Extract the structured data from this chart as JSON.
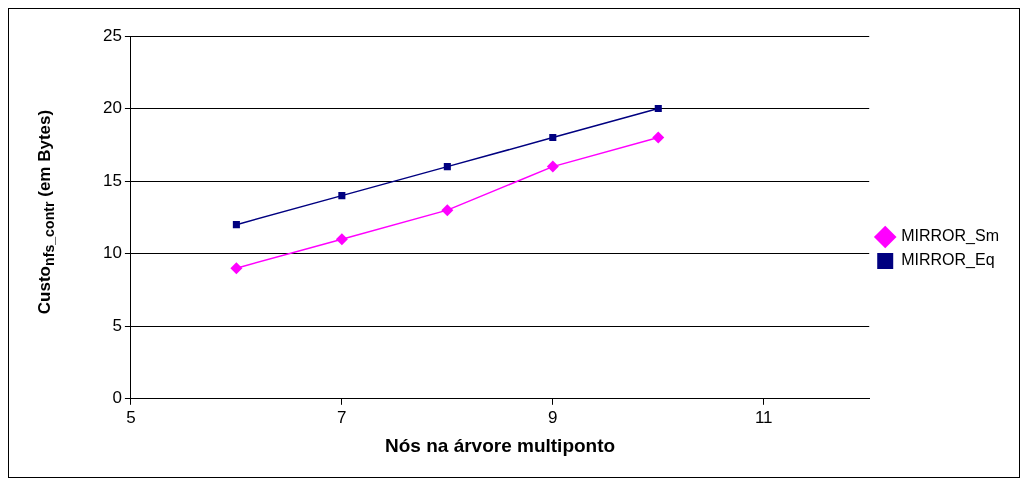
{
  "chart_data": {
    "type": "line",
    "xlabel": "Nós na árvore multiponto",
    "ylabel": "Custo$_{nfs_contr}$ (em Bytes)",
    "xlim": [
      5,
      12
    ],
    "xticks": [
      5,
      7,
      9,
      11
    ],
    "ylim": [
      0,
      25
    ],
    "yticks": [
      0,
      5,
      10,
      15,
      20,
      25
    ],
    "grid": "y",
    "legend": "right",
    "series": [
      {
        "name": "MIRROR_Sm",
        "color": "#ff00ff",
        "marker": "diamond",
        "x": [
          6,
          7,
          8,
          9,
          10
        ],
        "values": [
          9,
          11,
          13,
          16,
          18
        ]
      },
      {
        "name": "MIRROR_Eq",
        "color": "#000080",
        "marker": "square",
        "x": [
          6,
          7,
          8,
          9,
          10
        ],
        "values": [
          12,
          14,
          16,
          18,
          20
        ]
      }
    ]
  }
}
